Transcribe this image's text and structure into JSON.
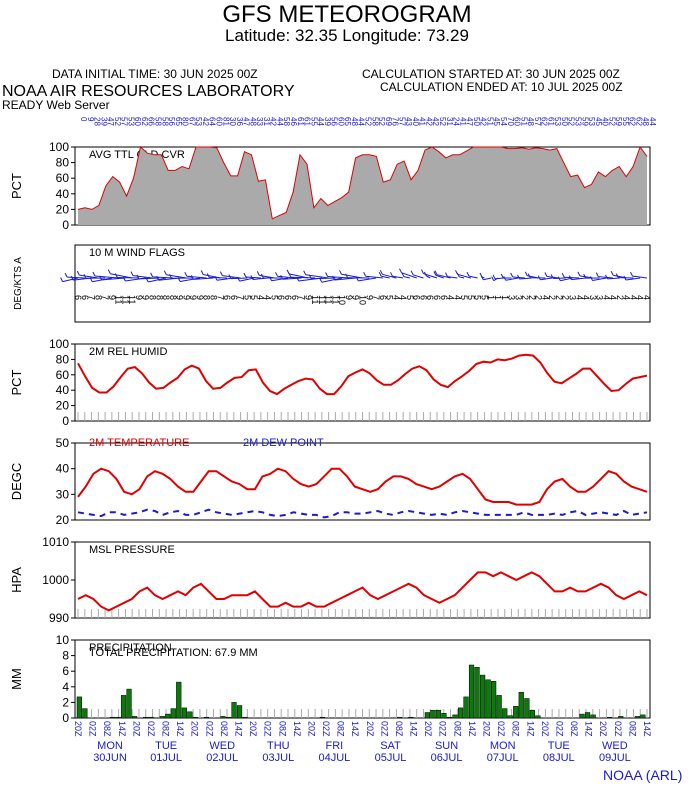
{
  "header": {
    "title": "GFS METEOROGRAM",
    "latlon": "Latitude: 32.35 Longitude:  73.29",
    "initial_time": "DATA INITIAL TIME: 30 JUN 2025 00Z",
    "calc_started": "CALCULATION STARTED AT: 30 JUN 2025 00Z",
    "calc_ended": "CALCULATION ENDED AT: 10 JUL 2025 00Z",
    "organization": "NOAA AIR RESOURCES LABORATORY",
    "server": "READY Web Server",
    "credit": "NOAA (ARL)"
  },
  "colors": {
    "cloud_fill": "#aaaaaa",
    "cloud_line": "#e00000",
    "red": "#e00000",
    "blue": "#1a1ad0",
    "precip": "#0a7a0a"
  },
  "time_axis": {
    "hour_labels": [
      "20Z",
      "02Z",
      "08Z",
      "14Z"
    ],
    "days": [
      {
        "dow": "MON",
        "date": "30JUN"
      },
      {
        "dow": "TUE",
        "date": "01JUL"
      },
      {
        "dow": "WED",
        "date": "02JUL"
      },
      {
        "dow": "THU",
        "date": "03JUL"
      },
      {
        "dow": "FRI",
        "date": "04JUL"
      },
      {
        "dow": "SAT",
        "date": "05JUL"
      },
      {
        "dow": "SUN",
        "date": "06JUL"
      },
      {
        "dow": "MON",
        "date": "07JUL"
      },
      {
        "dow": "TUE",
        "date": "08JUL"
      },
      {
        "dow": "WED",
        "date": "09JUL"
      }
    ]
  },
  "chart_data": [
    {
      "id": "cloud",
      "type": "area",
      "title": "AVG TTL CLD CVR",
      "ylabel": "PCT",
      "ylim": [
        0,
        100
      ],
      "yticks": [
        0,
        20,
        40,
        60,
        80,
        100
      ],
      "top_labels": [
        "0",
        "9",
        "28",
        "39",
        "47",
        "52",
        "57",
        "53",
        "60",
        "62",
        "66",
        "58",
        "58",
        "56",
        "65",
        "80",
        "67",
        "53",
        "42",
        "64",
        "60",
        "81",
        "30",
        "36",
        "47",
        "48",
        "33",
        "31",
        "42",
        "44",
        "58",
        "46",
        "61",
        "61",
        "55",
        "44",
        "39",
        "56",
        "60",
        "65",
        "48",
        "44",
        "52",
        "58",
        "52",
        "69",
        "76",
        "57",
        "43",
        "40",
        "41",
        "42",
        "42",
        "52",
        "31",
        "24",
        "41",
        "47",
        "50",
        "42",
        "51",
        "45",
        "54",
        "70",
        "60",
        "51",
        "48",
        "57",
        "62",
        "61",
        "53",
        "50",
        "52",
        "53",
        "59",
        "53",
        "45",
        "40",
        "52",
        "59",
        "55",
        "62",
        "62",
        "48",
        "44"
      ],
      "values": [
        20,
        22,
        20,
        25,
        50,
        62,
        55,
        37,
        60,
        100,
        92,
        90,
        90,
        70,
        70,
        75,
        72,
        100,
        100,
        100,
        99,
        80,
        63,
        63,
        94,
        90,
        56,
        58,
        8,
        12,
        16,
        42,
        90,
        78,
        22,
        34,
        25,
        30,
        35,
        42,
        86,
        90,
        90,
        88,
        55,
        58,
        78,
        82,
        58,
        70,
        96,
        100,
        94,
        86,
        90,
        90,
        95,
        100,
        100,
        100,
        100,
        100,
        98,
        98,
        99,
        97,
        99,
        98,
        96,
        98,
        80,
        62,
        64,
        48,
        52,
        68,
        62,
        70,
        75,
        62,
        75,
        100,
        88
      ]
    },
    {
      "id": "wind",
      "type": "table",
      "title": "10 M  WIND FLAGS",
      "ylabel": "DEG/KTS  A",
      "speeds_kts": [
        "6",
        "6",
        "7",
        "8",
        "7",
        "9",
        "11",
        "11",
        "11",
        "9",
        "9",
        "8",
        "8",
        "8",
        "8",
        "9",
        "9",
        "9",
        "9",
        "8",
        "8",
        "7",
        "6",
        "6",
        "7",
        "5",
        "5",
        "4",
        "4",
        "5",
        "6",
        "6",
        "6",
        "7",
        "9",
        "11",
        "11",
        "11",
        "11",
        "10",
        "9",
        "9",
        "10",
        "9",
        "7",
        "6",
        "5",
        "4",
        "4",
        "5",
        "6",
        "6",
        "6",
        "6",
        "6",
        "4",
        "4",
        "5",
        "5",
        "5",
        "5",
        "1",
        "1",
        "1",
        "3",
        "3",
        "2",
        "2",
        "2",
        "4",
        "2",
        "2",
        "2",
        "3",
        "4",
        "4",
        "3",
        "3",
        "4",
        "4",
        "2",
        "4",
        "4",
        "4",
        "4"
      ]
    },
    {
      "id": "rh",
      "type": "line",
      "title": "2M REL HUMID",
      "ylabel": "PCT",
      "ylim": [
        0,
        100
      ],
      "yticks": [
        0,
        20,
        40,
        60,
        80,
        100
      ],
      "values": [
        75,
        58,
        43,
        37,
        37,
        45,
        57,
        68,
        70,
        62,
        50,
        42,
        43,
        50,
        56,
        67,
        72,
        68,
        52,
        42,
        43,
        50,
        56,
        57,
        66,
        67,
        50,
        39,
        35,
        42,
        47,
        52,
        55,
        54,
        42,
        35,
        35,
        45,
        58,
        63,
        67,
        62,
        53,
        47,
        47,
        53,
        61,
        68,
        71,
        66,
        54,
        47,
        44,
        52,
        58,
        65,
        74,
        77,
        76,
        80,
        79,
        81,
        85,
        86,
        85,
        76,
        62,
        51,
        49,
        55,
        61,
        68,
        68,
        58,
        48,
        39,
        40,
        48,
        55,
        57,
        59
      ]
    },
    {
      "id": "temp",
      "type": "line",
      "title": "2M TEMPERATURE",
      "title2": "2M  DEW POINT",
      "ylabel": "DEGC",
      "ylim": [
        20,
        50
      ],
      "yticks": [
        20,
        30,
        40,
        50
      ],
      "temperature": [
        29,
        33,
        38,
        40,
        39,
        36,
        31,
        30,
        32,
        37,
        39,
        38,
        36,
        33,
        31,
        31,
        35,
        39,
        39,
        37,
        35,
        34,
        32,
        32,
        37,
        38,
        40,
        39,
        36,
        34,
        33,
        34,
        37,
        40,
        40,
        37,
        33,
        32,
        31,
        32,
        35,
        37,
        37,
        36,
        34,
        33,
        32,
        33,
        35,
        37,
        38,
        36,
        32,
        28,
        27,
        27,
        27,
        26,
        26,
        26,
        27,
        32,
        35,
        36,
        33,
        31,
        31,
        33,
        36,
        39,
        38,
        35,
        33,
        32,
        31
      ],
      "dewpoint": [
        23,
        22.5,
        22,
        21.5,
        23,
        23,
        22,
        22.5,
        23,
        24,
        23.5,
        22,
        23,
        23.5,
        22,
        22,
        23,
        24,
        23,
        22.5,
        22,
        22.5,
        23,
        23.5,
        23,
        22,
        21.5,
        22,
        23,
        22.5,
        22,
        22,
        21,
        21.5,
        23,
        23,
        22.5,
        22.5,
        23,
        23.5,
        22.5,
        22,
        23,
        23.5,
        23,
        22.5,
        22,
        22.5,
        22,
        23,
        23.5,
        23,
        22.5,
        22,
        22,
        22,
        22,
        22,
        23,
        22,
        22,
        22,
        22.5,
        22,
        23,
        23.5,
        22,
        22.5,
        23,
        22.5,
        22,
        23.5,
        22,
        22.5,
        23
      ]
    },
    {
      "id": "pressure",
      "type": "line",
      "title": "MSL PRESSURE",
      "ylabel": "HPA",
      "ylim": [
        990,
        1010
      ],
      "yticks": [
        990,
        1000,
        1010
      ],
      "values": [
        995,
        996,
        995,
        993,
        992,
        993,
        994,
        995,
        997,
        998,
        996,
        995,
        996,
        997,
        996,
        998,
        999,
        997,
        995,
        995,
        996,
        996,
        996,
        997,
        995,
        993,
        993,
        994,
        993,
        993,
        994,
        993,
        993,
        994,
        995,
        996,
        997,
        998,
        996,
        995,
        996,
        997,
        998,
        999,
        998,
        996,
        995,
        994,
        995,
        996,
        998,
        1000,
        1002,
        1002,
        1001,
        1002,
        1001,
        1000,
        1001,
        1002,
        1001,
        999,
        997,
        997,
        998,
        997,
        997,
        998,
        999,
        998,
        996,
        995,
        996,
        997,
        996
      ]
    },
    {
      "id": "precip",
      "type": "bar",
      "title": "PRECIPITATION",
      "subtitle": "TOTAL PRECIPITATION:  67.9 MM",
      "ylabel": "MM",
      "ylim": [
        0,
        10
      ],
      "yticks": [
        0,
        2,
        4,
        6,
        8,
        10
      ],
      "values": [
        2.7,
        1.2,
        0,
        0,
        0,
        0,
        0.1,
        0.1,
        2.9,
        3.7,
        0.2,
        0,
        0.1,
        0.1,
        0,
        0.2,
        0.5,
        1.2,
        4.6,
        1.3,
        0.8,
        0.1,
        0,
        0.1,
        0,
        0,
        0.2,
        0.1,
        2.0,
        1.6,
        0.1,
        0,
        0,
        0,
        0,
        0,
        0,
        0,
        0,
        0,
        0,
        0,
        0,
        0,
        0.1,
        0,
        0,
        0,
        0,
        0,
        0,
        0,
        0,
        0,
        0,
        0,
        0,
        0,
        0.1,
        0,
        0.1,
        0,
        0,
        0.7,
        1.0,
        1.0,
        0.6,
        0.1,
        0.4,
        1.3,
        2.7,
        6.8,
        6.5,
        5.5,
        4.9,
        4.7,
        2.9,
        1.2,
        0.3,
        1.5,
        3.3,
        2.5,
        1.0,
        0.3,
        0,
        0,
        0,
        0,
        0,
        0,
        0,
        0.5,
        0.7,
        0.4,
        0,
        0,
        0.1,
        0,
        0.2,
        0,
        0,
        0.2,
        0.4
      ]
    }
  ]
}
